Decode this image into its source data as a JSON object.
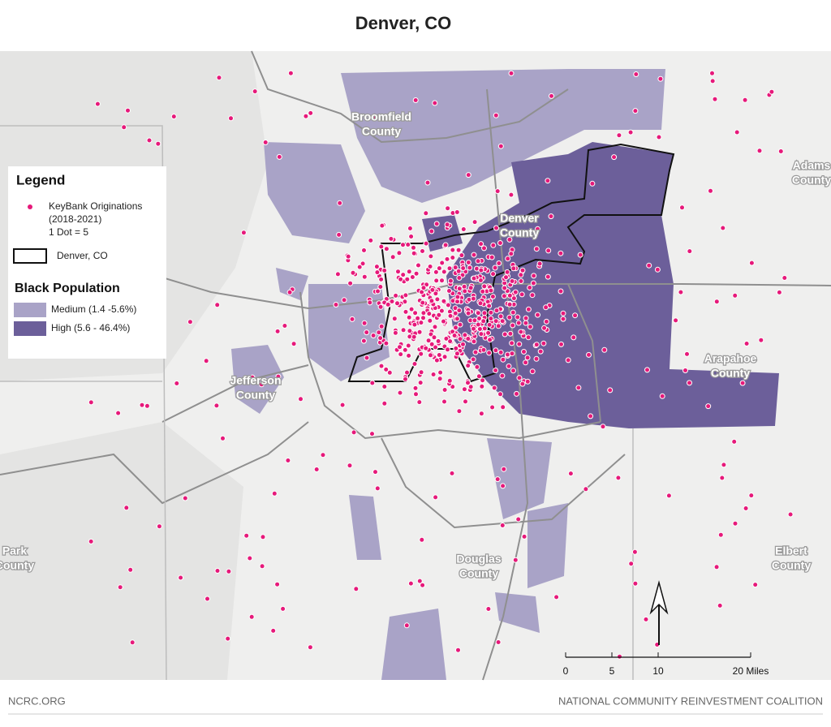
{
  "title": "Denver, CO",
  "legend": {
    "title": "Legend",
    "dots": [
      "KeyBank Originations",
      "(2018-2021)",
      "1 Dot = 5"
    ],
    "boundary": "Denver, CO",
    "population_title": "Black Population",
    "classes": [
      "Medium (1.4 -5.6%)",
      "High (5.6 - 46.4%)"
    ]
  },
  "counties": [
    {
      "name": "Broomfield",
      "suffix": "County"
    },
    {
      "name": "Denver",
      "suffix": "County"
    },
    {
      "name": "Adams",
      "suffix": "County"
    },
    {
      "name": "Arapahoe",
      "suffix": "County"
    },
    {
      "name": "Jefferson",
      "suffix": "County"
    },
    {
      "name": "Park",
      "suffix": "County"
    },
    {
      "name": "Douglas",
      "suffix": "County"
    },
    {
      "name": "Elbert",
      "suffix": "County"
    }
  ],
  "scale_bar": {
    "labels": [
      "0",
      "5",
      "10",
      "20 Miles"
    ]
  },
  "footer": {
    "left": "NCRC.ORG",
    "right": "NATIONAL COMMUNITY REINVESTMENT COALITION"
  }
}
